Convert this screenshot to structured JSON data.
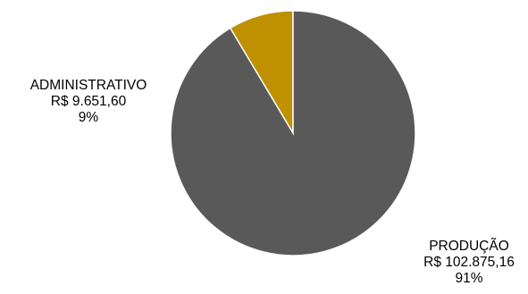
{
  "chart_data": {
    "type": "pie",
    "start_angle_deg": 0,
    "direction": "counterclockwise",
    "slices": [
      {
        "name": "ADMINISTRATIVO",
        "value": 9651.6,
        "value_label": "R$ 9.651,60",
        "percent_label": "9%",
        "color": "#BF9000"
      },
      {
        "name": "PRODUÇÃO",
        "value": 102875.16,
        "value_label": "R$ 102.875,16",
        "percent_label": "91%",
        "color": "#595959"
      }
    ]
  }
}
